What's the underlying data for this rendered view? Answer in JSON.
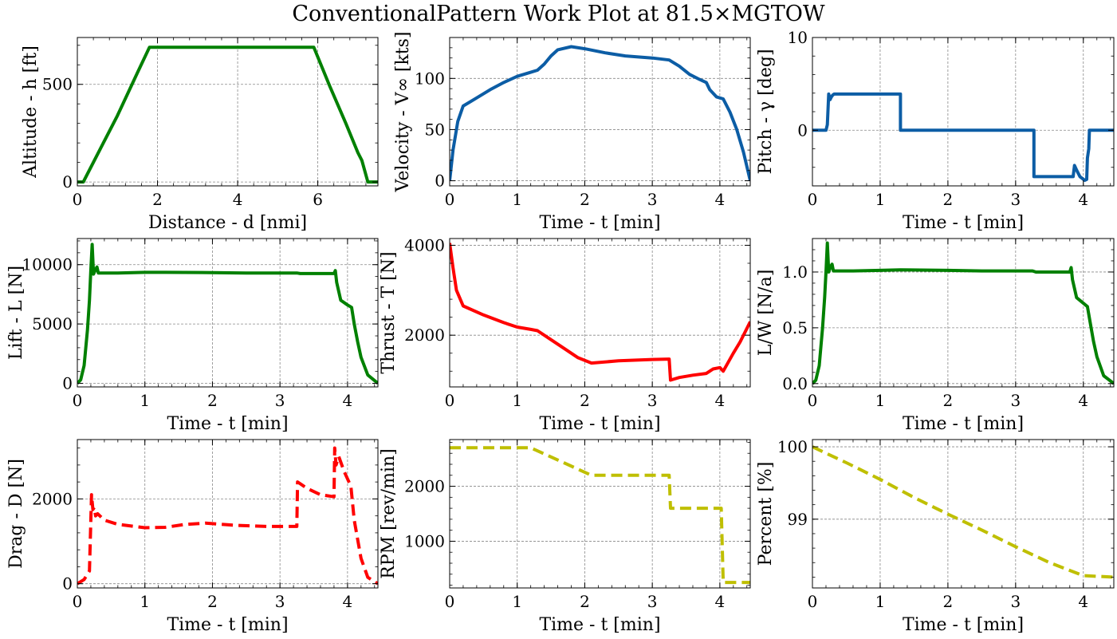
{
  "figure": {
    "title": "ConventionalPattern Work Plot at 81.5×MGTOW"
  },
  "colors": {
    "green": "#008000",
    "blue": "#0C5DA5",
    "red": "#FF0000",
    "olive": "#BFBF00",
    "grid": "#888888"
  },
  "chart_data": [
    {
      "type": "line",
      "xlabel": "Distance - d [nmi]",
      "ylabel": "Altitude - h [ft]",
      "xlim": [
        0,
        7.5
      ],
      "ylim": [
        -20,
        740
      ],
      "xticks": [
        0,
        2,
        4,
        6
      ],
      "yticks": [
        0,
        500
      ],
      "grid": true,
      "series": [
        {
          "color": "green",
          "dash": false,
          "points": [
            [
              0,
              0
            ],
            [
              0.15,
              0
            ],
            [
              0.5,
              140
            ],
            [
              1.0,
              340
            ],
            [
              1.5,
              560
            ],
            [
              1.8,
              690
            ],
            [
              4.0,
              690
            ],
            [
              5.9,
              690
            ],
            [
              6.3,
              490
            ],
            [
              6.7,
              300
            ],
            [
              7.0,
              150
            ],
            [
              7.1,
              110
            ],
            [
              7.25,
              0
            ],
            [
              7.5,
              0
            ]
          ]
        }
      ]
    },
    {
      "type": "line",
      "xlabel": "Time - t [min]",
      "ylabel": "Velocity - V∞ [kts]",
      "xlim": [
        0,
        4.45
      ],
      "ylim": [
        -5,
        140
      ],
      "xticks": [
        0,
        1,
        2,
        3,
        4
      ],
      "yticks": [
        0,
        50,
        100
      ],
      "grid": true,
      "series": [
        {
          "color": "blue",
          "dash": false,
          "points": [
            [
              0,
              0
            ],
            [
              0.05,
              30
            ],
            [
              0.12,
              58
            ],
            [
              0.2,
              73
            ],
            [
              0.4,
              81
            ],
            [
              0.6,
              89
            ],
            [
              0.8,
              96
            ],
            [
              1.0,
              102
            ],
            [
              1.2,
              106
            ],
            [
              1.3,
              108
            ],
            [
              1.4,
              114
            ],
            [
              1.5,
              122
            ],
            [
              1.6,
              128
            ],
            [
              1.8,
              131
            ],
            [
              2.0,
              129
            ],
            [
              2.3,
              125
            ],
            [
              2.6,
              122
            ],
            [
              3.0,
              120
            ],
            [
              3.25,
              118
            ],
            [
              3.4,
              112
            ],
            [
              3.55,
              104
            ],
            [
              3.7,
              99
            ],
            [
              3.8,
              96
            ],
            [
              3.85,
              89
            ],
            [
              3.95,
              82
            ],
            [
              4.05,
              80
            ],
            [
              4.15,
              67
            ],
            [
              4.25,
              50
            ],
            [
              4.35,
              28
            ],
            [
              4.45,
              0
            ]
          ]
        }
      ]
    },
    {
      "type": "line",
      "xlabel": "Time - t [min]",
      "ylabel": "Pitch - γ [deg]",
      "xlim": [
        0,
        4.45
      ],
      "ylim": [
        -6,
        10
      ],
      "xticks": [
        0,
        1,
        2,
        3,
        4
      ],
      "yticks": [
        0,
        10
      ],
      "grid": true,
      "series": [
        {
          "color": "blue",
          "dash": false,
          "points": [
            [
              0,
              0
            ],
            [
              0.2,
              0
            ],
            [
              0.22,
              0.6
            ],
            [
              0.24,
              3.9
            ],
            [
              0.26,
              3.3
            ],
            [
              0.28,
              3.6
            ],
            [
              0.3,
              3.8
            ],
            [
              0.32,
              3.9
            ],
            [
              1.3,
              3.9
            ],
            [
              1.3,
              0
            ],
            [
              3.27,
              0
            ],
            [
              3.27,
              -5
            ],
            [
              3.85,
              -5
            ],
            [
              3.87,
              -3.8
            ],
            [
              3.9,
              -4.3
            ],
            [
              3.95,
              -5
            ],
            [
              4.02,
              -5.4
            ],
            [
              4.05,
              -5.3
            ],
            [
              4.06,
              -3
            ],
            [
              4.08,
              -2
            ],
            [
              4.09,
              0
            ],
            [
              4.45,
              0
            ]
          ]
        }
      ]
    },
    {
      "type": "line",
      "xlabel": "Time - t [min]",
      "ylabel": "Lift - L [N]",
      "xlim": [
        0,
        4.45
      ],
      "ylim": [
        -300,
        12200
      ],
      "xticks": [
        0,
        1,
        2,
        3,
        4
      ],
      "yticks": [
        0,
        5000,
        10000
      ],
      "grid": true,
      "series": [
        {
          "color": "green",
          "dash": false,
          "points": [
            [
              0,
              0
            ],
            [
              0.05,
              300
            ],
            [
              0.1,
              1500
            ],
            [
              0.15,
              4500
            ],
            [
              0.18,
              7000
            ],
            [
              0.2,
              9500
            ],
            [
              0.22,
              11700
            ],
            [
              0.24,
              9200
            ],
            [
              0.27,
              9600
            ],
            [
              0.29,
              9800
            ],
            [
              0.31,
              9300
            ],
            [
              0.6,
              9300
            ],
            [
              1.0,
              9350
            ],
            [
              1.3,
              9350
            ],
            [
              2.0,
              9330
            ],
            [
              2.5,
              9300
            ],
            [
              3.25,
              9300
            ],
            [
              3.3,
              9250
            ],
            [
              3.8,
              9250
            ],
            [
              3.82,
              9500
            ],
            [
              3.84,
              8500
            ],
            [
              3.9,
              7000
            ],
            [
              4.0,
              6600
            ],
            [
              4.06,
              6400
            ],
            [
              4.1,
              5000
            ],
            [
              4.15,
              3500
            ],
            [
              4.2,
              2200
            ],
            [
              4.3,
              700
            ],
            [
              4.45,
              0
            ]
          ]
        }
      ]
    },
    {
      "type": "line",
      "xlabel": "Time - t [min]",
      "ylabel": "Thrust - T [N]",
      "xlim": [
        0,
        4.45
      ],
      "ylim": [
        850,
        4150
      ],
      "xticks": [
        0,
        1,
        2,
        3,
        4
      ],
      "yticks": [
        2000,
        4000
      ],
      "grid": true,
      "series": [
        {
          "color": "red",
          "dash": false,
          "points": [
            [
              0,
              4050
            ],
            [
              0.05,
              3500
            ],
            [
              0.1,
              3000
            ],
            [
              0.2,
              2650
            ],
            [
              0.5,
              2450
            ],
            [
              0.8,
              2280
            ],
            [
              1.0,
              2180
            ],
            [
              1.2,
              2130
            ],
            [
              1.3,
              2100
            ],
            [
              1.5,
              1900
            ],
            [
              1.7,
              1700
            ],
            [
              1.9,
              1500
            ],
            [
              2.1,
              1380
            ],
            [
              2.5,
              1430
            ],
            [
              3.0,
              1460
            ],
            [
              3.25,
              1470
            ],
            [
              3.27,
              1000
            ],
            [
              3.4,
              1060
            ],
            [
              3.6,
              1110
            ],
            [
              3.8,
              1150
            ],
            [
              3.9,
              1250
            ],
            [
              4.0,
              1280
            ],
            [
              4.05,
              1200
            ],
            [
              4.2,
              1600
            ],
            [
              4.3,
              1850
            ],
            [
              4.45,
              2300
            ]
          ]
        }
      ]
    },
    {
      "type": "line",
      "xlabel": "Time - t [min]",
      "ylabel": "L/W [N/a]",
      "xlim": [
        0,
        4.45
      ],
      "ylim": [
        -0.03,
        1.3
      ],
      "xticks": [
        0,
        1,
        2,
        3,
        4
      ],
      "yticks": [
        0.0,
        0.5,
        1.0
      ],
      "grid": true,
      "series": [
        {
          "color": "green",
          "dash": false,
          "points": [
            [
              0,
              0
            ],
            [
              0.05,
              0.03
            ],
            [
              0.1,
              0.16
            ],
            [
              0.15,
              0.5
            ],
            [
              0.18,
              0.77
            ],
            [
              0.2,
              1.0
            ],
            [
              0.22,
              1.26
            ],
            [
              0.24,
              1.0
            ],
            [
              0.27,
              1.05
            ],
            [
              0.29,
              1.07
            ],
            [
              0.31,
              1.01
            ],
            [
              0.6,
              1.01
            ],
            [
              1.0,
              1.015
            ],
            [
              1.3,
              1.02
            ],
            [
              2.0,
              1.015
            ],
            [
              2.5,
              1.01
            ],
            [
              3.25,
              1.01
            ],
            [
              3.3,
              1.0
            ],
            [
              3.8,
              1.0
            ],
            [
              3.82,
              1.04
            ],
            [
              3.84,
              0.93
            ],
            [
              3.9,
              0.77
            ],
            [
              4.0,
              0.72
            ],
            [
              4.06,
              0.69
            ],
            [
              4.1,
              0.55
            ],
            [
              4.15,
              0.38
            ],
            [
              4.2,
              0.24
            ],
            [
              4.3,
              0.07
            ],
            [
              4.45,
              0
            ]
          ]
        }
      ]
    },
    {
      "type": "line",
      "xlabel": "Time - t [min]",
      "ylabel": "Drag - D [N]",
      "xlim": [
        0,
        4.45
      ],
      "ylim": [
        -100,
        3400
      ],
      "xticks": [
        0,
        1,
        2,
        3,
        4
      ],
      "yticks": [
        0,
        2000
      ],
      "grid": true,
      "series": [
        {
          "color": "red",
          "dash": true,
          "points": [
            [
              0,
              0
            ],
            [
              0.1,
              100
            ],
            [
              0.18,
              300
            ],
            [
              0.21,
              2100
            ],
            [
              0.23,
              1750
            ],
            [
              0.25,
              1800
            ],
            [
              0.27,
              1600
            ],
            [
              0.3,
              1650
            ],
            [
              0.4,
              1500
            ],
            [
              0.6,
              1400
            ],
            [
              1.0,
              1320
            ],
            [
              1.3,
              1330
            ],
            [
              1.6,
              1400
            ],
            [
              1.9,
              1430
            ],
            [
              2.3,
              1380
            ],
            [
              2.8,
              1350
            ],
            [
              3.25,
              1350
            ],
            [
              3.26,
              2400
            ],
            [
              3.4,
              2250
            ],
            [
              3.6,
              2100
            ],
            [
              3.8,
              2050
            ],
            [
              3.81,
              3200
            ],
            [
              3.83,
              2800
            ],
            [
              3.87,
              3000
            ],
            [
              3.95,
              2650
            ],
            [
              4.05,
              2300
            ],
            [
              4.1,
              1500
            ],
            [
              4.2,
              600
            ],
            [
              4.3,
              150
            ],
            [
              4.45,
              0
            ]
          ]
        }
      ]
    },
    {
      "type": "line",
      "xlabel": "Time - t [min]",
      "ylabel": "RPM [rev/min]",
      "xlim": [
        0,
        4.45
      ],
      "ylim": [
        150,
        2850
      ],
      "xticks": [
        0,
        1,
        2,
        3,
        4
      ],
      "yticks": [
        1000,
        2000
      ],
      "grid": true,
      "series": [
        {
          "color": "olive",
          "dash": true,
          "points": [
            [
              0,
              2700
            ],
            [
              1.2,
              2700
            ],
            [
              2.1,
              2200
            ],
            [
              3.25,
              2200
            ],
            [
              3.27,
              1600
            ],
            [
              4.02,
              1600
            ],
            [
              4.05,
              250
            ],
            [
              4.45,
              250
            ]
          ]
        }
      ]
    },
    {
      "type": "line",
      "xlabel": "Time - t [min]",
      "ylabel": "Percent [%]",
      "xlim": [
        0,
        4.45
      ],
      "ylim": [
        98.05,
        100.1
      ],
      "xticks": [
        0,
        1,
        2,
        3,
        4
      ],
      "yticks": [
        99,
        100
      ],
      "grid": true,
      "series": [
        {
          "color": "olive",
          "dash": true,
          "points": [
            [
              0,
              100
            ],
            [
              0.5,
              99.78
            ],
            [
              1.0,
              99.55
            ],
            [
              1.5,
              99.3
            ],
            [
              2.0,
              99.07
            ],
            [
              2.5,
              98.85
            ],
            [
              3.0,
              98.62
            ],
            [
              3.5,
              98.4
            ],
            [
              4.0,
              98.22
            ],
            [
              4.45,
              98.2
            ]
          ]
        }
      ]
    }
  ]
}
